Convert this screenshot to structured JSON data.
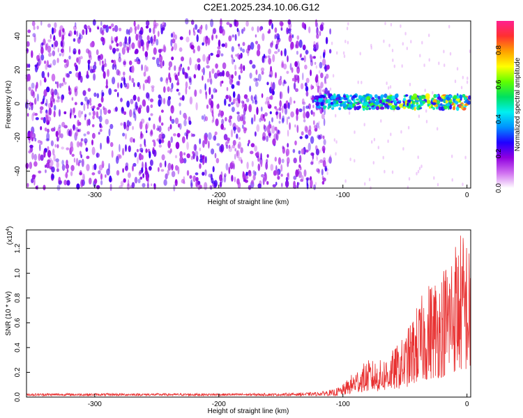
{
  "title": "C2E1.2025.234.10.06.G12",
  "chart_data": [
    {
      "type": "heatmap",
      "xlabel": "Height of straight line (km)",
      "ylabel": "Frequency (Hz)",
      "xlim": [
        -355,
        3
      ],
      "ylim": [
        -50,
        49
      ],
      "xticks": [
        -300,
        -200,
        -100,
        0
      ],
      "yticks": [
        -40,
        -20,
        0,
        20,
        40
      ],
      "colorbar": {
        "label": "Normalized spectral amplitude",
        "range": [
          0.0,
          0.97
        ],
        "ticks": [
          "0.0",
          "0.2",
          "0.4",
          "0.6",
          "0.8"
        ],
        "tick_values": [
          0.0,
          0.2,
          0.4,
          0.6,
          0.8
        ],
        "colors": [
          "#ffffff",
          "#d070f0",
          "#9000e0",
          "#2000ff",
          "#0090ff",
          "#00f0f0",
          "#00e060",
          "#60ff00",
          "#ffff00",
          "#ffa000",
          "#ff3030",
          "#ff2090"
        ]
      },
      "features": [
        {
          "name": "diffuse noise",
          "x_range": [
            -355,
            -110
          ],
          "y_range": [
            -50,
            49
          ],
          "amplitude": [
            0.05,
            0.2
          ]
        },
        {
          "name": "narrow signal band",
          "x_range": [
            -122,
            3
          ],
          "y_center": 1,
          "y_halfwidth": 4,
          "amplitude": [
            0.2,
            0.9
          ]
        }
      ]
    },
    {
      "type": "line",
      "xlabel": "Height of straight line (km)",
      "ylabel": "SNR (10 * v/v)",
      "y_scale_label": "(x10",
      "y_scale_exp": "4",
      "y_scale_close": ")",
      "xlim": [
        -355,
        3
      ],
      "ylim": [
        0.0,
        1.35
      ],
      "xticks": [
        -300,
        -200,
        -100,
        0
      ],
      "yticks": [
        0.0,
        0.2,
        0.4,
        0.6,
        0.8,
        1.0,
        1.2
      ],
      "series": [
        {
          "name": "SNR",
          "color": "#e83030",
          "x": [
            -355,
            -300,
            -250,
            -200,
            -150,
            -120,
            -110,
            -100,
            -90,
            -80,
            -70,
            -60,
            -50,
            -40,
            -30,
            -20,
            -10,
            -5,
            0,
            3
          ],
          "y_envelope": [
            0.02,
            0.02,
            0.02,
            0.02,
            0.02,
            0.03,
            0.05,
            0.1,
            0.22,
            0.3,
            0.3,
            0.38,
            0.5,
            0.75,
            0.95,
            1.05,
            1.3,
            1.35,
            1.35,
            1.1
          ]
        }
      ]
    }
  ]
}
